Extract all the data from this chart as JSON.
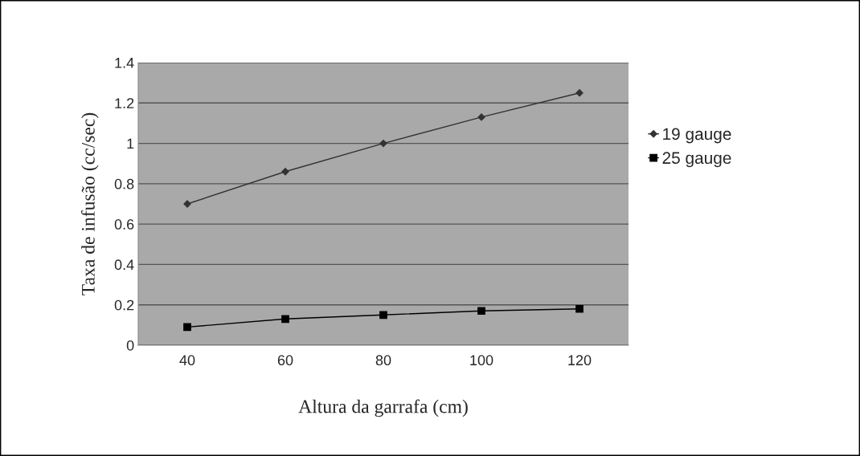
{
  "chart_data": {
    "type": "line",
    "xlabel": "Altura da garrafa (cm)",
    "ylabel": "Taxa de infusão (cc/sec)",
    "categories": [
      "40",
      "60",
      "80",
      "100",
      "120"
    ],
    "series": [
      {
        "name": "19 gauge",
        "color": "#333333",
        "marker": "diamond",
        "values": [
          0.7,
          0.86,
          1.0,
          1.13,
          1.25
        ]
      },
      {
        "name": "25 gauge",
        "color": "#000000",
        "marker": "square",
        "values": [
          0.09,
          0.13,
          0.15,
          0.17,
          0.18
        ]
      }
    ],
    "ylim": [
      0,
      1.4
    ],
    "yticks": [
      0,
      0.2,
      0.4,
      0.6,
      0.8,
      1,
      1.2,
      1.4
    ],
    "grid": "y",
    "legend": "right"
  }
}
